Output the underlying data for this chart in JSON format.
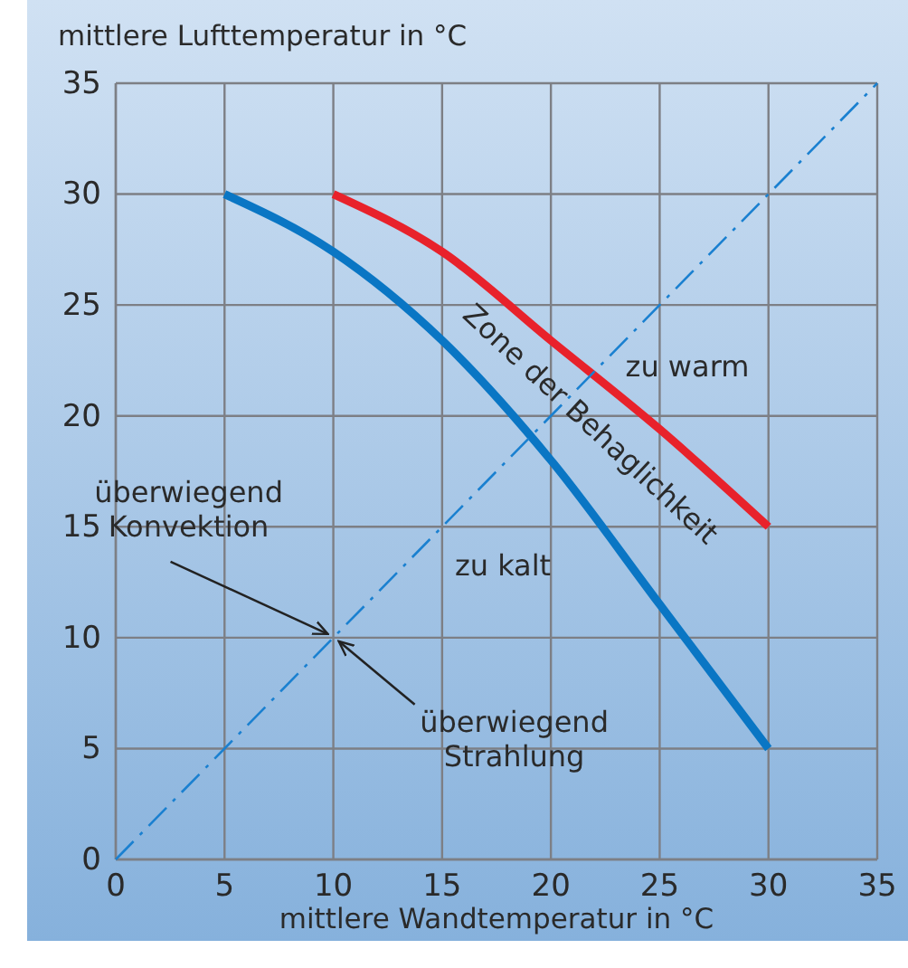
{
  "chart_data": {
    "type": "line",
    "xlabel": "mittlere Wandtemperatur in °C",
    "ylabel": "mittlere Lufttemperatur in °C",
    "xlim": [
      0,
      35
    ],
    "ylim": [
      0,
      35
    ],
    "xticks": [
      0,
      5,
      10,
      15,
      20,
      25,
      30,
      35
    ],
    "yticks": [
      0,
      5,
      10,
      15,
      20,
      25,
      30,
      35
    ],
    "grid": true,
    "marker": "none",
    "series": [
      {
        "color": "#0a76c4",
        "x": [
          5,
          10,
          15,
          20,
          25,
          30
        ],
        "values": [
          30,
          27.4,
          23.4,
          18,
          11.5,
          5
        ]
      },
      {
        "color": "#e8222b",
        "x": [
          10,
          15,
          20,
          25,
          30
        ],
        "values": [
          30,
          27.4,
          23.4,
          19.4,
          15
        ]
      },
      {
        "color": "#1a80d0",
        "line_style": "dashed",
        "x": [
          0,
          35
        ],
        "values": [
          0,
          35
        ]
      }
    ],
    "annotations": [
      "Zone der Behaglichkeit",
      "zu warm",
      "zu kalt",
      {
        "text": "überwiegend Konvektion",
        "x": 10,
        "y": 10
      },
      {
        "text": "überwiegend Strahlung",
        "x": 10,
        "y": 10
      }
    ]
  }
}
